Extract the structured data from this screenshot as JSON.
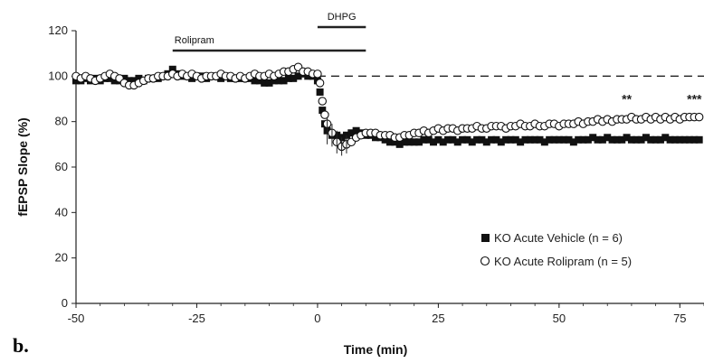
{
  "panel_label": "b.",
  "colors": {
    "axis": "#222222",
    "vehicle": "#111111",
    "rolipram_fill": "#ffffff",
    "rolipram_stroke": "#111111"
  },
  "chart_data": {
    "type": "scatter",
    "xlabel": "Time (min)",
    "ylabel": "fEPSP Slope (%)",
    "xlim": [
      -50,
      80
    ],
    "ylim": [
      0,
      120
    ],
    "xticks": [
      "-50",
      "-25",
      "0",
      "25",
      "50",
      "75"
    ],
    "yticks": [
      "0",
      "20",
      "40",
      "60",
      "80",
      "100",
      "120"
    ],
    "reference_line": {
      "y": 100,
      "style": "dashed"
    },
    "legend": {
      "placement": "bottom-right"
    },
    "drug_bars": [
      {
        "label": "Rolipram",
        "start": -30,
        "end": 10
      },
      {
        "label": "DHPG",
        "start": 0,
        "end": 10
      }
    ],
    "significance": [
      {
        "text": "**",
        "x": 64
      },
      {
        "text": "***",
        "x": 78
      }
    ],
    "series": [
      {
        "name": "KO Acute Vehicle (n = 6)",
        "marker": "filled-square",
        "points": [
          [
            -50,
            98
          ],
          [
            -49,
            98
          ],
          [
            -48,
            99
          ],
          [
            -47,
            98
          ],
          [
            -46,
            99
          ],
          [
            -45,
            98
          ],
          [
            -44,
            99
          ],
          [
            -43,
            99
          ],
          [
            -42,
            98
          ],
          [
            -41,
            98
          ],
          [
            -40,
            99
          ],
          [
            -39,
            98
          ],
          [
            -38,
            98
          ],
          [
            -37,
            99
          ],
          [
            -36,
            98
          ],
          [
            -35,
            99
          ],
          [
            -34,
            99
          ],
          [
            -33,
            99
          ],
          [
            -32,
            100
          ],
          [
            -31,
            101
          ],
          [
            -30,
            103
          ],
          [
            -29,
            101
          ],
          [
            -28,
            100
          ],
          [
            -27,
            100
          ],
          [
            -26,
            99
          ],
          [
            -25,
            100
          ],
          [
            -24,
            100
          ],
          [
            -23,
            99
          ],
          [
            -22,
            100
          ],
          [
            -21,
            100
          ],
          [
            -20,
            99
          ],
          [
            -19,
            100
          ],
          [
            -18,
            99
          ],
          [
            -17,
            99
          ],
          [
            -16,
            99
          ],
          [
            -15,
            99
          ],
          [
            -14,
            99
          ],
          [
            -13,
            98
          ],
          [
            -12,
            98
          ],
          [
            -11,
            97
          ],
          [
            -10,
            97
          ],
          [
            -9,
            98
          ],
          [
            -8,
            98
          ],
          [
            -7,
            98
          ],
          [
            -6,
            99
          ],
          [
            -5,
            99
          ],
          [
            -4,
            100
          ],
          [
            -3,
            101
          ],
          [
            -2,
            100
          ],
          [
            -1,
            100
          ],
          [
            0,
            98
          ],
          [
            0.5,
            93
          ],
          [
            1,
            85
          ],
          [
            1.5,
            79
          ],
          [
            2,
            76
          ],
          [
            3,
            74
          ],
          [
            4,
            74
          ],
          [
            5,
            73
          ],
          [
            6,
            74
          ],
          [
            7,
            75
          ],
          [
            8,
            76
          ],
          [
            9,
            75
          ],
          [
            10,
            74
          ],
          [
            11,
            74
          ],
          [
            12,
            73
          ],
          [
            13,
            73
          ],
          [
            14,
            72
          ],
          [
            15,
            71
          ],
          [
            16,
            71
          ],
          [
            17,
            70
          ],
          [
            18,
            71
          ],
          [
            19,
            71
          ],
          [
            20,
            71
          ],
          [
            21,
            71
          ],
          [
            22,
            72
          ],
          [
            23,
            72
          ],
          [
            24,
            71
          ],
          [
            25,
            72
          ],
          [
            26,
            71
          ],
          [
            27,
            72
          ],
          [
            28,
            72
          ],
          [
            29,
            71
          ],
          [
            30,
            72
          ],
          [
            31,
            72
          ],
          [
            32,
            71
          ],
          [
            33,
            72
          ],
          [
            34,
            72
          ],
          [
            35,
            71
          ],
          [
            36,
            72
          ],
          [
            37,
            72
          ],
          [
            38,
            71
          ],
          [
            39,
            72
          ],
          [
            40,
            72
          ],
          [
            41,
            72
          ],
          [
            42,
            71
          ],
          [
            43,
            72
          ],
          [
            44,
            72
          ],
          [
            45,
            72
          ],
          [
            46,
            72
          ],
          [
            47,
            71
          ],
          [
            48,
            72
          ],
          [
            49,
            72
          ],
          [
            50,
            72
          ],
          [
            51,
            72
          ],
          [
            52,
            72
          ],
          [
            53,
            71
          ],
          [
            54,
            72
          ],
          [
            55,
            72
          ],
          [
            56,
            72
          ],
          [
            57,
            73
          ],
          [
            58,
            72
          ],
          [
            59,
            72
          ],
          [
            60,
            73
          ],
          [
            61,
            72
          ],
          [
            62,
            72
          ],
          [
            63,
            72
          ],
          [
            64,
            73
          ],
          [
            65,
            72
          ],
          [
            66,
            72
          ],
          [
            67,
            72
          ],
          [
            68,
            73
          ],
          [
            69,
            72
          ],
          [
            70,
            72
          ],
          [
            71,
            72
          ],
          [
            72,
            73
          ],
          [
            73,
            72
          ],
          [
            74,
            72
          ],
          [
            75,
            72
          ],
          [
            76,
            72
          ],
          [
            77,
            72
          ],
          [
            78,
            72
          ],
          [
            79,
            72
          ],
          [
            80,
            72
          ]
        ]
      },
      {
        "name": "KO Acute Rolipram (n = 5)",
        "marker": "open-circle",
        "points": [
          [
            -50,
            100
          ],
          [
            -49,
            99
          ],
          [
            -48,
            100
          ],
          [
            -47,
            99
          ],
          [
            -46,
            98
          ],
          [
            -45,
            99
          ],
          [
            -44,
            100
          ],
          [
            -43,
            101
          ],
          [
            -42,
            100
          ],
          [
            -41,
            99
          ],
          [
            -40,
            97
          ],
          [
            -39,
            96
          ],
          [
            -38,
            96
          ],
          [
            -37,
            97
          ],
          [
            -36,
            98
          ],
          [
            -35,
            99
          ],
          [
            -34,
            99
          ],
          [
            -33,
            100
          ],
          [
            -32,
            100
          ],
          [
            -31,
            100
          ],
          [
            -30,
            101
          ],
          [
            -29,
            100
          ],
          [
            -28,
            101
          ],
          [
            -27,
            100
          ],
          [
            -26,
            101
          ],
          [
            -25,
            100
          ],
          [
            -24,
            99
          ],
          [
            -23,
            100
          ],
          [
            -22,
            100
          ],
          [
            -21,
            100
          ],
          [
            -20,
            101
          ],
          [
            -19,
            100
          ],
          [
            -18,
            100
          ],
          [
            -17,
            99
          ],
          [
            -16,
            100
          ],
          [
            -15,
            99
          ],
          [
            -14,
            100
          ],
          [
            -13,
            101
          ],
          [
            -12,
            100
          ],
          [
            -11,
            100
          ],
          [
            -10,
            101
          ],
          [
            -9,
            100
          ],
          [
            -8,
            101
          ],
          [
            -7,
            102
          ],
          [
            -6,
            102
          ],
          [
            -5,
            103
          ],
          [
            -4,
            104
          ],
          [
            -3,
            102
          ],
          [
            -2,
            102
          ],
          [
            -1,
            101
          ],
          [
            0,
            101
          ],
          [
            0.5,
            97
          ],
          [
            1,
            89
          ],
          [
            1.5,
            83
          ],
          [
            2,
            79
          ],
          [
            3,
            75
          ],
          [
            4,
            71
          ],
          [
            5,
            69
          ],
          [
            6,
            70
          ],
          [
            7,
            71
          ],
          [
            8,
            73
          ],
          [
            9,
            74
          ],
          [
            10,
            75
          ],
          [
            11,
            75
          ],
          [
            12,
            75
          ],
          [
            13,
            74
          ],
          [
            14,
            74
          ],
          [
            15,
            74
          ],
          [
            16,
            73
          ],
          [
            17,
            73
          ],
          [
            18,
            74
          ],
          [
            19,
            74
          ],
          [
            20,
            75
          ],
          [
            21,
            75
          ],
          [
            22,
            76
          ],
          [
            23,
            75
          ],
          [
            24,
            76
          ],
          [
            25,
            77
          ],
          [
            26,
            76
          ],
          [
            27,
            77
          ],
          [
            28,
            77
          ],
          [
            29,
            76
          ],
          [
            30,
            77
          ],
          [
            31,
            77
          ],
          [
            32,
            77
          ],
          [
            33,
            78
          ],
          [
            34,
            77
          ],
          [
            35,
            77
          ],
          [
            36,
            78
          ],
          [
            37,
            78
          ],
          [
            38,
            78
          ],
          [
            39,
            77
          ],
          [
            40,
            78
          ],
          [
            41,
            78
          ],
          [
            42,
            79
          ],
          [
            43,
            78
          ],
          [
            44,
            78
          ],
          [
            45,
            79
          ],
          [
            46,
            78
          ],
          [
            47,
            78
          ],
          [
            48,
            79
          ],
          [
            49,
            79
          ],
          [
            50,
            78
          ],
          [
            51,
            79
          ],
          [
            52,
            79
          ],
          [
            53,
            79
          ],
          [
            54,
            80
          ],
          [
            55,
            79
          ],
          [
            56,
            80
          ],
          [
            57,
            80
          ],
          [
            58,
            81
          ],
          [
            59,
            80
          ],
          [
            60,
            81
          ],
          [
            61,
            80
          ],
          [
            62,
            81
          ],
          [
            63,
            81
          ],
          [
            64,
            81
          ],
          [
            65,
            82
          ],
          [
            66,
            81
          ],
          [
            67,
            81
          ],
          [
            68,
            82
          ],
          [
            69,
            81
          ],
          [
            70,
            82
          ],
          [
            71,
            81
          ],
          [
            72,
            82
          ],
          [
            73,
            81
          ],
          [
            74,
            82
          ],
          [
            75,
            81
          ],
          [
            76,
            82
          ],
          [
            77,
            82
          ],
          [
            78,
            82
          ],
          [
            79,
            82
          ],
          [
            80,
            82
          ]
        ]
      }
    ]
  }
}
